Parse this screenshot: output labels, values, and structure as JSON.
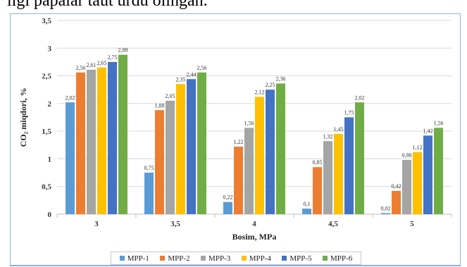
{
  "page": {
    "top_text": "ilgi papalar taut urdu olingan."
  },
  "chart_data": {
    "type": "bar",
    "title": "",
    "xlabel": "Bosim, MPa",
    "ylabel": "CO₂ miqdori, %",
    "ylim": [
      0,
      3.5
    ],
    "yticks": [
      "0",
      "0,5",
      "1",
      "1,5",
      "2",
      "2,5",
      "3",
      "3,5"
    ],
    "ytick_values": [
      0,
      0.5,
      1,
      1.5,
      2,
      2.5,
      3,
      3.5
    ],
    "categories": [
      "3",
      "3,5",
      "4",
      "4,5",
      "5"
    ],
    "grid": true,
    "legend_position": "bottom",
    "series": [
      {
        "name": "MPP-1",
        "color": "#5b9bd5",
        "values": [
          2.02,
          0.75,
          0.22,
          0.1,
          0.02
        ],
        "labels": [
          "2,02",
          "0,75",
          "0,22",
          "0,1",
          "0,02"
        ]
      },
      {
        "name": "MPP-2",
        "color": "#ed7d31",
        "values": [
          2.56,
          1.88,
          1.22,
          0.85,
          0.42
        ],
        "labels": [
          "2,56",
          "1,88",
          "1,22",
          "0,85",
          "0,42"
        ]
      },
      {
        "name": "MPP-3",
        "color": "#a5a5a5",
        "values": [
          2.61,
          2.05,
          1.56,
          1.32,
          0.98
        ],
        "labels": [
          "2,61",
          "2,05",
          "1,56",
          "1,32",
          "0,98"
        ]
      },
      {
        "name": "MPP-4",
        "color": "#ffc000",
        "values": [
          2.65,
          2.35,
          2.12,
          1.45,
          1.12
        ],
        "labels": [
          "2,65",
          "2,35",
          "2,12",
          "1,45",
          "1,12"
        ]
      },
      {
        "name": "MPP-5",
        "color": "#4472c4",
        "values": [
          2.75,
          2.44,
          2.25,
          1.75,
          1.42
        ],
        "labels": [
          "2,75",
          "2,44",
          "2,25",
          "1,75",
          "1,42"
        ]
      },
      {
        "name": "MPP-6",
        "color": "#70ad47",
        "values": [
          2.88,
          2.56,
          2.36,
          2.02,
          1.56
        ],
        "labels": [
          "2,88",
          "2,56",
          "2,36",
          "2,02",
          "1,56"
        ]
      }
    ]
  }
}
